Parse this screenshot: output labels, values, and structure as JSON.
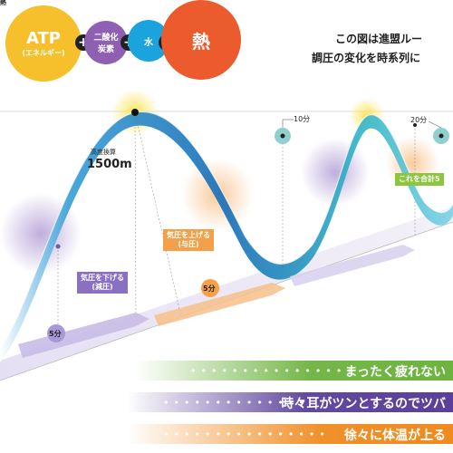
{
  "corner_text": "熱",
  "header_circles": {
    "atp_main": "ATP",
    "atp_sub": "(エネルギー)",
    "co2_line1": "二酸化",
    "co2_line2": "炭素",
    "water": "水",
    "heat": "熱",
    "plus": "+"
  },
  "description_lines": [
    "この図は進盟ルー",
    "調圧の変化を時系列に"
  ],
  "peak_label": {
    "line1": "高度換算",
    "value": "1500m"
  },
  "time_markers": [
    "10分",
    "20分"
  ],
  "tags": {
    "pressure_up_line1": "気圧を上げる",
    "pressure_up_line2": "(与圧)",
    "pressure_down_line1": "気圧を下げる",
    "pressure_down_line2": "(減圧)",
    "total": "これを合計5"
  },
  "durations": {
    "up": "5分",
    "down": "5分"
  },
  "bands": [
    {
      "text": "まったく疲れない",
      "color": "#6db33f"
    },
    {
      "text": "時々耳がツンとするのでツバ",
      "color": "#5b3f9a"
    },
    {
      "text": "徐々に体温が上る",
      "color": "#ef8a1e"
    }
  ],
  "colors": {
    "atp": "#f6c02c",
    "co2": "#8f5fb1",
    "water": "#1aa3dd",
    "heat": "#ec5b2d",
    "wave_blue": "#1e88c8",
    "wave_teal": "#2fb7a7"
  }
}
